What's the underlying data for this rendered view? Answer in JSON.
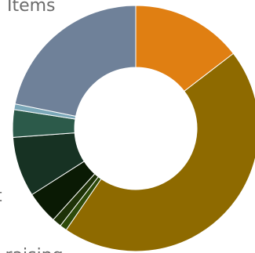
{
  "chart_data": {
    "type": "pie",
    "variant": "donut",
    "start_angle_deg": 0,
    "direction": "clockwise",
    "slices": [
      {
        "value": 15.7,
        "color": "#e07f12",
        "label": ""
      },
      {
        "value": 48.5,
        "color": "#8e6a00",
        "label": ""
      },
      {
        "value": 1.0,
        "color": "#2e4a0a",
        "label": ""
      },
      {
        "value": 1.3,
        "color": "#1e3208",
        "label": ""
      },
      {
        "value": 4.6,
        "color": "#0a1a04",
        "label": ""
      },
      {
        "value": 8.5,
        "color": "#173223",
        "label": ""
      },
      {
        "value": 3.9,
        "color": "#2c5a4a",
        "label": ""
      },
      {
        "value": 0.8,
        "color": "#7aa7b8",
        "label": ""
      },
      {
        "value": 23.5,
        "color": "#6f8199",
        "label": ""
      }
    ],
    "visible_labels": [
      {
        "text": "d Items"
      },
      {
        "text": "t"
      },
      {
        "text": "e raising"
      }
    ]
  }
}
